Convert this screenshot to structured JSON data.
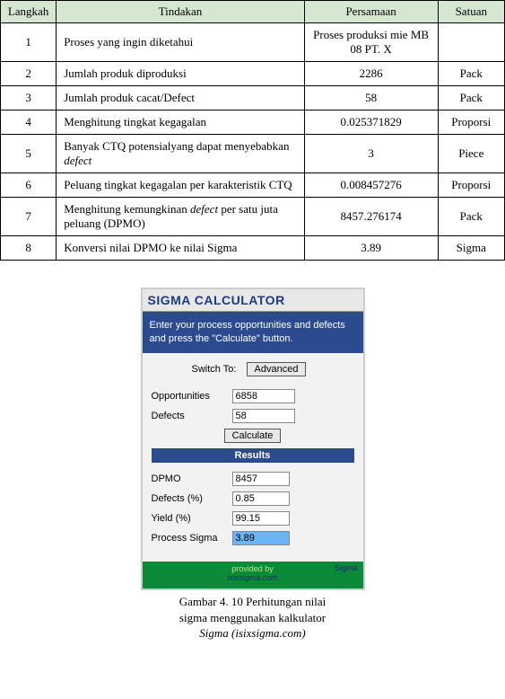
{
  "table": {
    "headers": {
      "step": "Langkah",
      "action": "Tindakan",
      "eq": "Persamaan",
      "unit": "Satuan"
    },
    "rows": [
      {
        "step": "1",
        "action": "Proses yang ingin diketahui",
        "eq": "Proses produksi mie MB 08 PT. X",
        "unit": ""
      },
      {
        "step": "2",
        "action": "Jumlah produk diproduksi",
        "eq": "2286",
        "unit": "Pack"
      },
      {
        "step": "3",
        "action": "Jumlah produk cacat/Defect",
        "eq": "58",
        "unit": "Pack"
      },
      {
        "step": "4",
        "action": "Menghitung tingkat kegagalan",
        "eq": "0.025371829",
        "unit": "Proporsi"
      },
      {
        "step": "5",
        "action_prefix": "Banyak CTQ potensialyang dapat menyebabkan ",
        "action_italic": "defect",
        "eq": "3",
        "unit": "Piece"
      },
      {
        "step": "6",
        "action": "Peluang tingkat kegagalan per karakteristik CTQ",
        "eq": "0.008457276",
        "unit": "Proporsi"
      },
      {
        "step": "7",
        "action_prefix": "Menghitung kemungkinan ",
        "action_italic": "defect",
        "action_suffix": " per satu juta peluang (DPMO)",
        "eq": "8457.276174",
        "unit": "Pack"
      },
      {
        "step": "8",
        "action": "Konversi nilai DPMO ke nilai Sigma",
        "eq": "3.89",
        "unit": "Sigma"
      }
    ]
  },
  "calc": {
    "title": "SIGMA CALCULATOR",
    "desc": "Enter your process opportunities and defects and press the \"Calculate\" button.",
    "switch_label": "Switch To:",
    "advanced_btn": "Advanced",
    "opp_label": "Opportunities",
    "opp_value": "6858",
    "def_label": "Defects",
    "def_value": "58",
    "calc_btn": "Calculate",
    "results_label": "Results",
    "dpmo_label": "DPMO",
    "dpmo_value": "8457",
    "defpct_label": "Defects (%)",
    "defpct_value": "0.85",
    "yield_label": "Yield (%)",
    "yield_value": "99.15",
    "psigma_label": "Process Sigma",
    "psigma_value": "3.89",
    "footer1": "provided by",
    "footer2": "isixsigma.com",
    "footer_sigma": "Sigma"
  },
  "caption": {
    "l1": "Gambar 4. 10 Perhitungan nilai",
    "l2": "sigma menggunakan kalkulator",
    "l3_prefix": "Sigma",
    "l3_italic": " (isixsigma.com)"
  }
}
